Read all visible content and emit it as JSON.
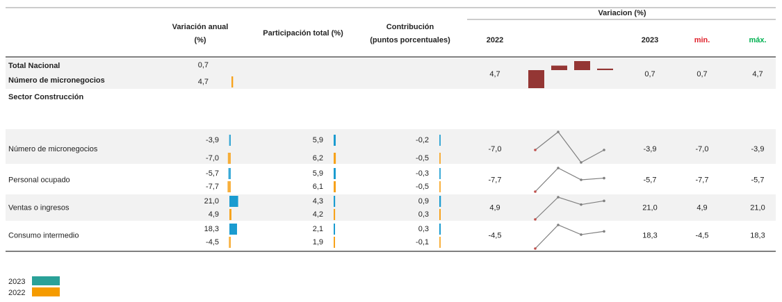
{
  "header": {
    "group": "Variacion (%)",
    "variacion_anual": [
      "Variación anual",
      "(%)"
    ],
    "participacion": "Participación total (%)",
    "contribucion": [
      "Contribución",
      "(puntos porcentuales)"
    ],
    "y2022": "2022",
    "y2023": "2023",
    "min": "min.",
    "max": "máx."
  },
  "settings": {
    "bar_colors": [
      "#1a9bd0",
      "#f7a21b"
    ],
    "spark_bar_color": "#943634",
    "spark_line_color": "#7f7f7f",
    "spark_start_color": "#c0504d",
    "min_color": "#e0202a",
    "max_color": "#00b050",
    "band_color": "#f2f2f2"
  },
  "total": {
    "labels": [
      "Total Nacional",
      "Número de micronegocios"
    ],
    "variacion_anual": [
      {
        "value": 0.7,
        "label": "0,7"
      },
      {
        "value": 4.7,
        "label": "4,7"
      }
    ],
    "y2022": {
      "value": 4.7,
      "label": "4,7"
    },
    "spark": [
      -6,
      1.5,
      3,
      0.5
    ],
    "y2023": {
      "value": 0.7,
      "label": "0,7"
    },
    "min": {
      "value": 0.7,
      "label": "0,7"
    },
    "max": {
      "value": 4.7,
      "label": "4,7"
    }
  },
  "sector": "Sector Construcción",
  "rows": [
    {
      "label": "Número de micronegocios",
      "variacion_anual": [
        {
          "value": -3.9,
          "label": "-3,9"
        },
        {
          "value": -7.0,
          "label": "-7,0"
        }
      ],
      "participacion": [
        {
          "value": 5.9,
          "label": "5,9"
        },
        {
          "value": 6.2,
          "label": "6,2"
        }
      ],
      "contribucion": [
        {
          "value": -0.2,
          "label": "-0,2"
        },
        {
          "value": -0.5,
          "label": "-0,5"
        }
      ],
      "y2022": {
        "value": -7.0,
        "label": "-7,0"
      },
      "spark": [
        0,
        13,
        -9,
        0
      ],
      "y2023": {
        "value": -3.9,
        "label": "-3,9"
      },
      "min": {
        "value": -7.0,
        "label": "-7,0"
      },
      "max": {
        "value": -3.9,
        "label": "-3,9"
      }
    },
    {
      "label": "Personal ocupado",
      "variacion_anual": [
        {
          "value": -5.7,
          "label": "-5,7"
        },
        {
          "value": -7.7,
          "label": "-7,7"
        }
      ],
      "participacion": [
        {
          "value": 5.9,
          "label": "5,9"
        },
        {
          "value": 6.1,
          "label": "6,1"
        }
      ],
      "contribucion": [
        {
          "value": -0.3,
          "label": "-0,3"
        },
        {
          "value": -0.5,
          "label": "-0,5"
        }
      ],
      "y2022": {
        "value": -7.7,
        "label": "-7,7"
      },
      "spark": [
        -8,
        6,
        -1,
        0
      ],
      "y2023": {
        "value": -5.7,
        "label": "-5,7"
      },
      "min": {
        "value": -7.7,
        "label": "-7,7"
      },
      "max": {
        "value": -5.7,
        "label": "-5,7"
      }
    },
    {
      "label": "Ventas o ingresos",
      "variacion_anual": [
        {
          "value": 21.0,
          "label": "21,0"
        },
        {
          "value": 4.9,
          "label": "4,9"
        }
      ],
      "participacion": [
        {
          "value": 4.3,
          "label": "4,3"
        },
        {
          "value": 4.2,
          "label": "4,2"
        }
      ],
      "contribucion": [
        {
          "value": 0.9,
          "label": "0,9"
        },
        {
          "value": 0.3,
          "label": "0,3"
        }
      ],
      "y2022": {
        "value": 4.9,
        "label": "4,9"
      },
      "spark": [
        -10,
        8,
        2,
        5
      ],
      "y2023": {
        "value": 21.0,
        "label": "21,0"
      },
      "min": {
        "value": 4.9,
        "label": "4,9"
      },
      "max": {
        "value": 21.0,
        "label": "21,0"
      }
    },
    {
      "label": "Consumo intermedio",
      "variacion_anual": [
        {
          "value": 18.3,
          "label": "18,3"
        },
        {
          "value": -4.5,
          "label": "-4,5"
        }
      ],
      "participacion": [
        {
          "value": 2.1,
          "label": "2,1"
        },
        {
          "value": 1.9,
          "label": "1,9"
        }
      ],
      "contribucion": [
        {
          "value": 0.3,
          "label": "0,3"
        },
        {
          "value": -0.1,
          "label": "-0,1"
        }
      ],
      "y2022": {
        "value": -4.5,
        "label": "-4,5"
      },
      "spark": [
        -12,
        10,
        1,
        4
      ],
      "y2023": {
        "value": 18.3,
        "label": "18,3"
      },
      "min": {
        "value": -4.5,
        "label": "-4,5"
      },
      "max": {
        "value": 18.3,
        "label": "18,3"
      }
    }
  ],
  "legend": [
    {
      "label": "2023",
      "color": "#2aa198"
    },
    {
      "label": "2022",
      "color": "#f59b00"
    }
  ]
}
